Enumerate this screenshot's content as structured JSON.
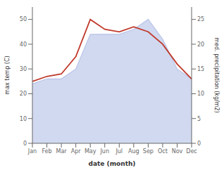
{
  "chart_data": {
    "type": "line",
    "categories": [
      "Jan",
      "Feb",
      "Mar",
      "Apr",
      "May",
      "Jun",
      "Jul",
      "Aug",
      "Sep",
      "Oct",
      "Nov",
      "Dec"
    ],
    "series": [
      {
        "type": "area",
        "axis": "y2",
        "color": "#b8c4e8",
        "values": [
          12,
          13,
          13,
          15,
          22,
          22,
          22,
          23,
          25,
          21,
          15,
          13
        ]
      },
      {
        "type": "line",
        "axis": "y",
        "color": "#c0392b",
        "values": [
          25,
          27,
          28,
          35,
          50,
          46,
          45,
          47,
          45,
          40,
          32,
          26
        ]
      }
    ],
    "xlabel": "date (month)",
    "ylabel": "max temp (C)",
    "y2label": "med. precipitation (kg/m2)",
    "ylim": [
      0,
      55
    ],
    "yticks": [
      0,
      10,
      20,
      30,
      40,
      50
    ],
    "y2lim": [
      0,
      27.5
    ],
    "y2ticks": [
      0,
      5,
      10,
      15,
      20,
      25
    ],
    "grid": false
  }
}
